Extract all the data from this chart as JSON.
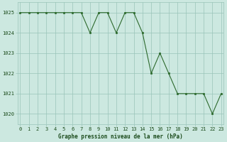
{
  "hours": [
    0,
    1,
    2,
    3,
    4,
    5,
    6,
    7,
    8,
    9,
    10,
    11,
    12,
    13,
    14,
    15,
    16,
    17,
    18,
    19,
    20,
    21,
    22,
    23
  ],
  "pressure": [
    1025,
    1025,
    1025,
    1025,
    1025,
    1025,
    1025,
    1025,
    1024,
    1025,
    1025,
    1024,
    1025,
    1025,
    1024,
    1022,
    1023,
    1022,
    1021,
    1021,
    1021,
    1021,
    1020,
    1021
  ],
  "line_color": "#2d6a2d",
  "marker_color": "#2d6a2d",
  "bg_color": "#cce8e0",
  "grid_color": "#99c4b8",
  "xlabel": "Graphe pression niveau de la mer (hPa)",
  "xlabel_color": "#1a4a1a",
  "tick_label_color": "#1a4a1a",
  "ylim": [
    1019.5,
    1025.5
  ],
  "yticks": [
    1020,
    1021,
    1022,
    1023,
    1024,
    1025
  ],
  "xticks": [
    0,
    1,
    2,
    3,
    4,
    5,
    6,
    7,
    8,
    9,
    10,
    11,
    12,
    13,
    14,
    15,
    16,
    17,
    18,
    19,
    20,
    21,
    22,
    23
  ],
  "xtick_labels": [
    "0",
    "1",
    "2",
    "3",
    "4",
    "5",
    "6",
    "7",
    "8",
    "9",
    "10",
    "11",
    "12",
    "13",
    "14",
    "15",
    "16",
    "17",
    "18",
    "19",
    "20",
    "21",
    "22",
    "23"
  ]
}
